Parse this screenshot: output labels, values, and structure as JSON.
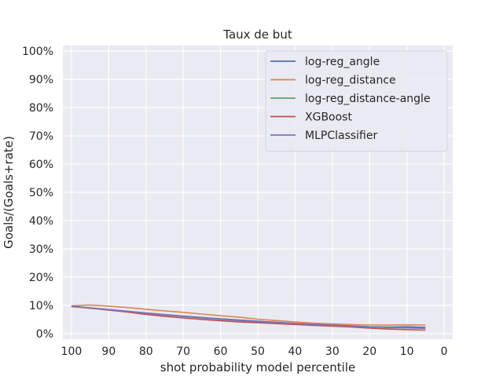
{
  "chart_data": {
    "type": "line",
    "title": "Taux de but",
    "xlabel": "shot probability model percentile",
    "ylabel": "Goals/(Goals+rate)",
    "xlim": [
      100,
      0
    ],
    "xlim_note": "x axis inverted",
    "ylim": [
      0,
      100
    ],
    "x_ticks": [
      100,
      90,
      80,
      70,
      60,
      50,
      40,
      30,
      20,
      10,
      0
    ],
    "x_tick_labels": [
      "100",
      "90",
      "80",
      "70",
      "60",
      "50",
      "40",
      "30",
      "20",
      "10",
      "0"
    ],
    "y_ticks": [
      0,
      10,
      20,
      30,
      40,
      50,
      60,
      70,
      80,
      90,
      100
    ],
    "y_tick_labels": [
      "0%",
      "10%",
      "20%",
      "30%",
      "40%",
      "50%",
      "60%",
      "70%",
      "80%",
      "90%",
      "100%"
    ],
    "grid": true,
    "legend_position": "upper-right",
    "x": [
      100,
      95,
      90,
      85,
      80,
      75,
      70,
      65,
      60,
      55,
      50,
      45,
      40,
      35,
      30,
      25,
      20,
      15,
      10,
      5
    ],
    "series": [
      {
        "name": "log-reg_angle",
        "color": "#4c72b0",
        "values": [
          9.6,
          9.0,
          8.4,
          7.9,
          7.3,
          6.7,
          6.2,
          5.7,
          5.2,
          4.8,
          4.4,
          4.0,
          3.6,
          3.3,
          3.0,
          2.7,
          2.4,
          2.3,
          2.4,
          2.2
        ]
      },
      {
        "name": "log-reg_distance",
        "color": "#dd8452",
        "values": [
          9.8,
          10.1,
          9.7,
          9.2,
          8.6,
          8.0,
          7.5,
          6.9,
          6.3,
          5.8,
          5.1,
          4.6,
          4.1,
          3.7,
          3.4,
          3.2,
          3.0,
          3.0,
          3.1,
          3.0
        ]
      },
      {
        "name": "log-reg_distance-angle",
        "color": "#55a868",
        "values": [
          9.5,
          9.0,
          8.4,
          7.8,
          7.2,
          6.6,
          6.1,
          5.6,
          5.1,
          4.6,
          4.2,
          3.8,
          3.4,
          3.1,
          2.8,
          2.5,
          2.3,
          2.3,
          2.0,
          1.9
        ]
      },
      {
        "name": "XGBoost",
        "color": "#c44e52",
        "values": [
          9.7,
          9.0,
          8.3,
          7.6,
          6.8,
          6.1,
          5.5,
          5.0,
          4.5,
          4.1,
          3.8,
          3.5,
          3.2,
          2.9,
          2.6,
          2.3,
          1.9,
          1.6,
          1.4,
          1.2
        ]
      },
      {
        "name": "MLPClassifier",
        "color": "#8172b3",
        "values": [
          9.6,
          9.1,
          8.5,
          7.9,
          7.2,
          6.6,
          6.0,
          5.5,
          5.0,
          4.6,
          4.2,
          3.8,
          3.5,
          3.2,
          2.9,
          2.6,
          2.3,
          2.1,
          2.0,
          1.8
        ]
      }
    ]
  }
}
